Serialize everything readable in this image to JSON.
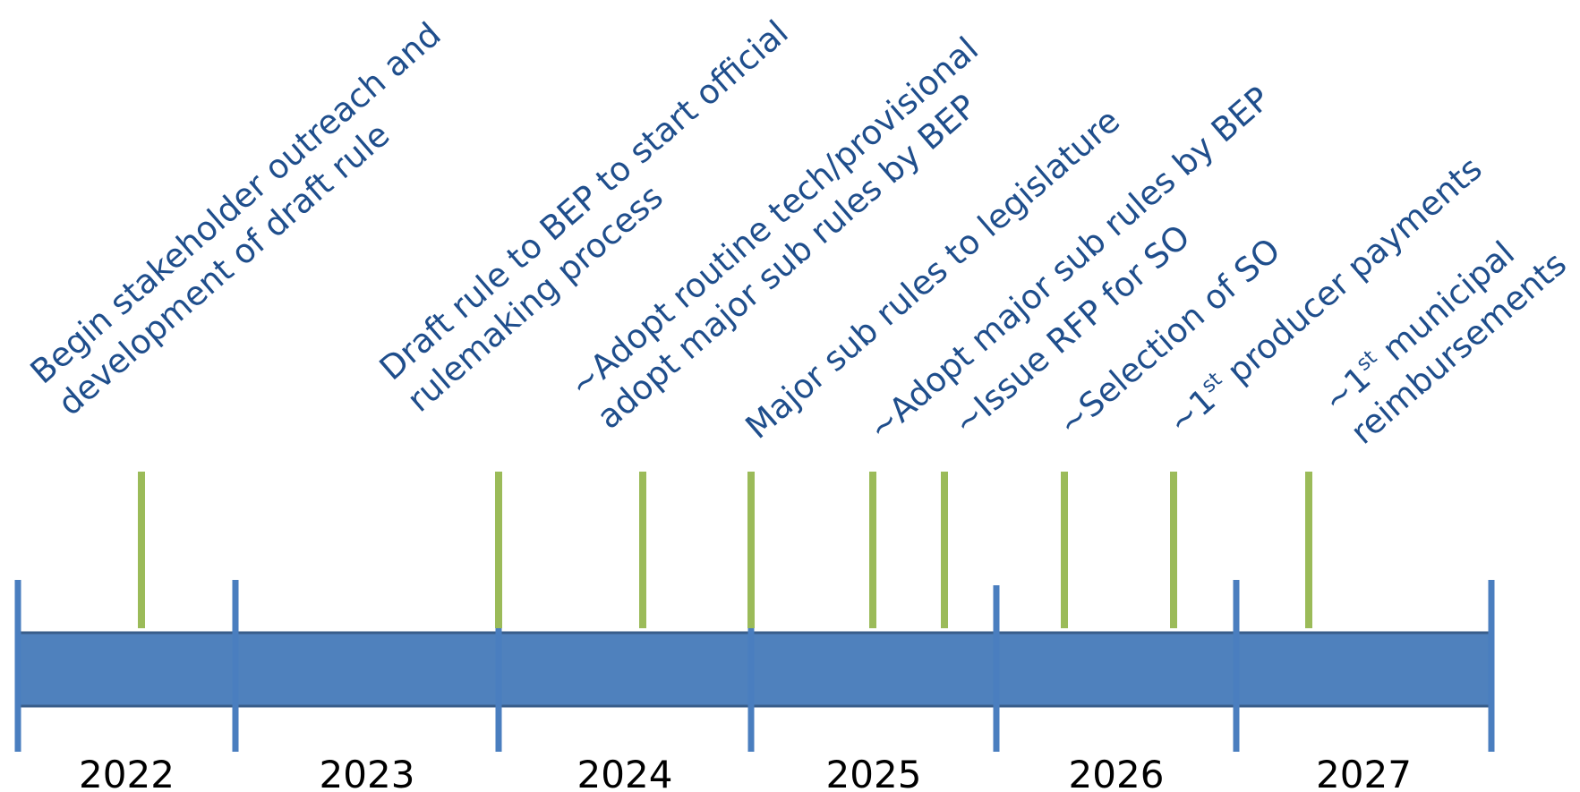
{
  "colors": {
    "bar_fill": "#4f81bd",
    "bar_stroke": "#385d8a",
    "divider": "#4a7ebf",
    "milestone_tick": "#9bbb59",
    "milestone_text": "#1f4e8c",
    "year_text": "#000000"
  },
  "years": [
    "2022",
    "2023",
    "2024",
    "2025",
    "2026",
    "2027"
  ],
  "milestones": [
    {
      "lines": [
        [
          {
            "t": "Begin stakeholder outreach and"
          }
        ],
        [
          {
            "t": "development of draft rule"
          }
        ]
      ]
    },
    {
      "lines": [
        [
          {
            "t": "Draft rule to BEP to start official"
          }
        ],
        [
          {
            "t": "rulemaking process"
          }
        ]
      ]
    },
    {
      "lines": [
        [
          {
            "t": "~Adopt routine tech/provisional"
          }
        ],
        [
          {
            "t": "adopt major sub rules by BEP"
          }
        ]
      ]
    },
    {
      "lines": [
        [
          {
            "t": "Major sub rules to legislature"
          }
        ]
      ]
    },
    {
      "lines": [
        [
          {
            "t": "~Adopt major sub rules by BEP"
          }
        ]
      ]
    },
    {
      "lines": [
        [
          {
            "t": "~Issue RFP for SO"
          }
        ]
      ]
    },
    {
      "lines": [
        [
          {
            "t": "~Selection of SO"
          }
        ]
      ]
    },
    {
      "lines": [
        [
          {
            "t": "~1"
          },
          {
            "t": "st",
            "sup": true
          },
          {
            "t": " producer payments"
          }
        ]
      ]
    },
    {
      "lines": [
        [
          {
            "t": "~1"
          },
          {
            "t": "st",
            "sup": true
          },
          {
            "t": " municipal"
          }
        ],
        [
          {
            "t": "reimbursements"
          }
        ]
      ]
    }
  ]
}
